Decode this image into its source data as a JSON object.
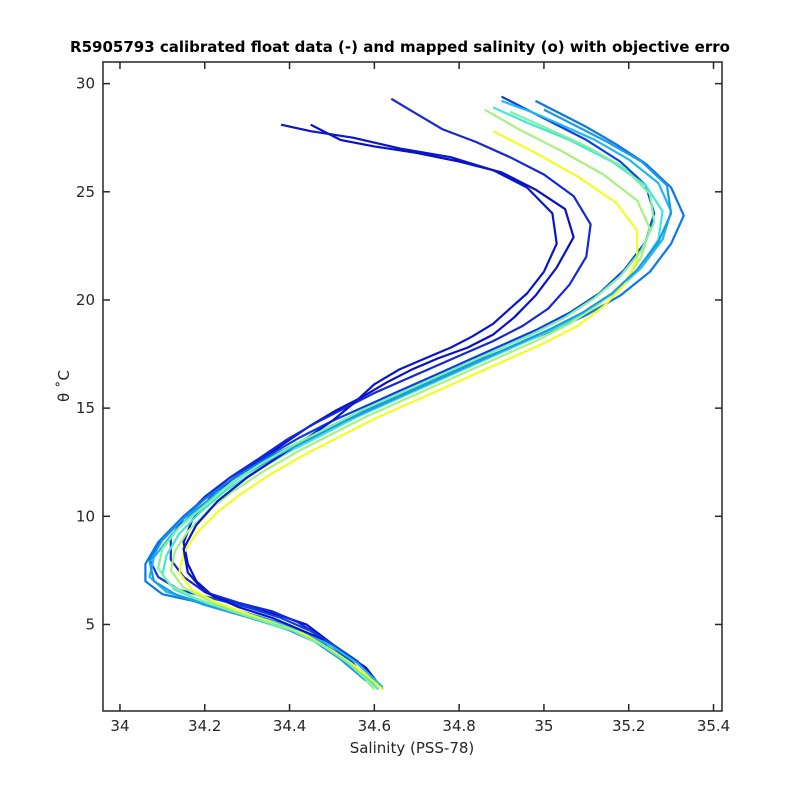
{
  "chart_data": {
    "type": "line",
    "title": "R5905793 calibrated float data (-) and mapped salinity (o) with objective erro",
    "xlabel": "Salinity (PSS-78)",
    "ylabel": "θ ˚C",
    "xlim": [
      33.96,
      35.42
    ],
    "ylim": [
      1.0,
      31.0
    ],
    "xticks": [
      34,
      34.2,
      34.4,
      34.6,
      34.8,
      35,
      35.2,
      35.4
    ],
    "xtick_labels": [
      "34",
      "34.2",
      "34.4",
      "34.6",
      "34.8",
      "35",
      "35.2",
      "35.4"
    ],
    "yticks": [
      5,
      10,
      15,
      20,
      25,
      30
    ],
    "ytick_labels": [
      "5",
      "10",
      "15",
      "20",
      "25",
      "30"
    ],
    "grid": false,
    "legend": "none",
    "colormap": [
      "#0000cc",
      "#0040e0",
      "#0a80e8",
      "#1fb8f0",
      "#40e8d8",
      "#a0f080",
      "#f0ff20"
    ],
    "series": [
      {
        "color": "#0a10c8",
        "x": [
          34.62,
          34.58,
          34.52,
          34.48,
          34.44,
          34.38,
          34.3,
          34.22,
          34.18,
          34.16,
          34.15,
          34.17,
          34.21,
          34.27,
          34.33,
          34.39,
          34.45,
          34.51,
          34.57,
          34.63,
          34.69,
          34.75,
          34.82,
          34.88,
          34.93,
          34.98,
          35.03,
          35.07,
          35.05,
          34.98,
          34.9,
          34.8,
          34.7,
          34.6,
          34.52,
          34.45
        ],
        "y": [
          2.0,
          3.0,
          3.8,
          4.4,
          5.0,
          5.4,
          5.8,
          6.3,
          7.0,
          7.8,
          8.8,
          9.8,
          10.8,
          11.8,
          12.6,
          13.4,
          14.2,
          14.9,
          15.5,
          16.2,
          16.8,
          17.3,
          17.8,
          18.4,
          19.2,
          20.2,
          21.5,
          22.9,
          24.2,
          25.1,
          25.9,
          26.4,
          26.8,
          27.1,
          27.4,
          28.1
        ]
      },
      {
        "color": "#1428d8",
        "x": [
          34.6,
          34.55,
          34.5,
          34.46,
          34.42,
          34.36,
          34.28,
          34.2,
          34.15,
          34.12,
          34.12,
          34.15,
          34.2,
          34.26,
          34.33,
          34.39,
          34.46,
          34.53,
          34.6,
          34.67,
          34.74,
          34.81,
          34.88,
          34.95,
          35.01,
          35.06,
          35.1,
          35.11,
          35.07,
          35.0,
          34.92,
          34.84,
          34.76,
          34.7,
          34.64
        ],
        "y": [
          2.1,
          3.2,
          4.0,
          4.6,
          5.1,
          5.6,
          6.0,
          6.5,
          7.2,
          8.0,
          9.0,
          9.9,
          10.9,
          11.8,
          12.7,
          13.5,
          14.3,
          15.0,
          15.7,
          16.3,
          16.9,
          17.5,
          18.1,
          18.8,
          19.6,
          20.7,
          22.0,
          23.5,
          24.8,
          25.8,
          26.6,
          27.3,
          27.9,
          28.6,
          29.3
        ]
      },
      {
        "color": "#0a40e4",
        "x": [
          34.61,
          34.56,
          34.5,
          34.45,
          34.38,
          34.3,
          34.22,
          34.14,
          34.09,
          34.07,
          34.1,
          34.15,
          34.21,
          34.28,
          34.35,
          34.42,
          34.5,
          34.58,
          34.66,
          34.74,
          34.82,
          34.9,
          34.98,
          35.06,
          35.13,
          35.19,
          35.24,
          35.26,
          35.24,
          35.18,
          35.1,
          35.02,
          34.96,
          34.9
        ],
        "y": [
          2.2,
          3.3,
          4.1,
          4.7,
          5.3,
          5.8,
          6.2,
          6.6,
          7.2,
          8.0,
          9.0,
          10.0,
          11.0,
          11.9,
          12.8,
          13.6,
          14.4,
          15.1,
          15.8,
          16.5,
          17.2,
          17.9,
          18.6,
          19.4,
          20.3,
          21.4,
          22.7,
          24.0,
          25.3,
          26.4,
          27.4,
          28.2,
          28.8,
          29.4
        ]
      },
      {
        "color": "#0a78ec",
        "x": [
          34.6,
          34.54,
          34.48,
          34.42,
          34.34,
          34.25,
          34.17,
          34.1,
          34.06,
          34.06,
          34.09,
          34.14,
          34.2,
          34.27,
          34.35,
          34.43,
          34.51,
          34.59,
          34.67,
          34.75,
          34.83,
          34.92,
          35.01,
          35.1,
          35.18,
          35.25,
          35.3,
          35.33,
          35.3,
          35.24,
          35.17,
          35.1,
          35.04,
          34.98
        ],
        "y": [
          2.2,
          3.3,
          4.1,
          4.8,
          5.3,
          5.8,
          6.1,
          6.4,
          7.0,
          7.8,
          8.8,
          9.8,
          10.8,
          11.8,
          12.7,
          13.5,
          14.3,
          15.0,
          15.7,
          16.4,
          17.1,
          17.8,
          18.5,
          19.3,
          20.2,
          21.3,
          22.6,
          23.9,
          25.2,
          26.3,
          27.2,
          28.0,
          28.6,
          29.2
        ]
      },
      {
        "color": "#20b8f0",
        "x": [
          34.62,
          34.56,
          34.5,
          34.43,
          34.35,
          34.26,
          34.18,
          34.11,
          34.07,
          34.08,
          34.12,
          34.17,
          34.23,
          34.3,
          34.38,
          34.46,
          34.54,
          34.62,
          34.7,
          34.78,
          34.86,
          34.94,
          35.02,
          35.1,
          35.17,
          35.23,
          35.28,
          35.3,
          35.27,
          35.2,
          35.12,
          35.04,
          34.97,
          34.9
        ],
        "y": [
          2.1,
          3.2,
          4.0,
          4.7,
          5.2,
          5.7,
          6.1,
          6.5,
          7.2,
          8.1,
          9.1,
          10.1,
          11.1,
          12.0,
          12.9,
          13.7,
          14.5,
          15.2,
          15.9,
          16.6,
          17.3,
          18.0,
          18.7,
          19.5,
          20.4,
          21.5,
          22.8,
          24.1,
          25.4,
          26.5,
          27.4,
          28.1,
          28.7,
          29.2
        ]
      },
      {
        "color": "#40e8d4",
        "x": [
          34.61,
          34.55,
          34.49,
          34.42,
          34.34,
          34.26,
          34.19,
          34.13,
          34.1,
          34.11,
          34.14,
          34.19,
          34.25,
          34.32,
          34.4,
          34.48,
          34.56,
          34.64,
          34.72,
          34.8,
          34.88,
          34.96,
          35.04,
          35.11,
          35.18,
          35.23,
          35.27,
          35.28,
          35.24,
          35.16,
          35.06,
          34.96,
          34.88
        ],
        "y": [
          2.0,
          3.1,
          3.9,
          4.6,
          5.1,
          5.6,
          6.1,
          6.6,
          7.3,
          8.2,
          9.2,
          10.2,
          11.2,
          12.1,
          13.0,
          13.8,
          14.6,
          15.3,
          16.0,
          16.7,
          17.4,
          18.1,
          18.8,
          19.6,
          20.5,
          21.6,
          22.8,
          24.1,
          25.3,
          26.4,
          27.4,
          28.2,
          28.9
        ]
      },
      {
        "color": "#a8f080",
        "x": [
          34.6,
          34.55,
          34.49,
          34.43,
          34.36,
          34.28,
          34.21,
          34.15,
          34.12,
          34.13,
          34.16,
          34.21,
          34.27,
          34.34,
          34.42,
          34.5,
          34.58,
          34.66,
          34.74,
          34.82,
          34.9,
          34.98,
          35.06,
          35.13,
          35.19,
          35.23,
          35.25,
          35.22,
          35.14,
          35.04,
          34.94,
          34.86
        ],
        "y": [
          2.0,
          3.1,
          3.9,
          4.6,
          5.1,
          5.6,
          6.1,
          6.7,
          7.5,
          8.4,
          9.3,
          10.3,
          11.2,
          12.1,
          13.0,
          13.8,
          14.6,
          15.3,
          16.0,
          16.7,
          17.4,
          18.1,
          18.9,
          19.8,
          20.8,
          22.0,
          23.3,
          24.6,
          25.8,
          26.9,
          27.9,
          28.8
        ]
      },
      {
        "color": "#f0ff20",
        "x": [
          34.62,
          34.56,
          34.5,
          34.44,
          34.37,
          34.3,
          34.23,
          34.17,
          34.14,
          34.15,
          34.18,
          34.23,
          34.29,
          34.36,
          34.44,
          34.52,
          34.6,
          34.68,
          34.76,
          34.84,
          34.92,
          35.0,
          35.08,
          35.14,
          35.19,
          35.22,
          35.22,
          35.17,
          35.08,
          34.98,
          34.88
        ],
        "y": [
          2.0,
          3.0,
          3.8,
          4.5,
          5.0,
          5.5,
          6.0,
          6.6,
          7.4,
          8.3,
          9.2,
          10.2,
          11.1,
          12.0,
          12.9,
          13.7,
          14.5,
          15.2,
          15.9,
          16.6,
          17.3,
          18.0,
          18.8,
          19.7,
          20.7,
          21.9,
          23.2,
          24.5,
          25.7,
          26.8,
          27.8
        ]
      },
      {
        "color": "#0818c8",
        "x": [
          34.48,
          34.42,
          34.36,
          34.28,
          34.2,
          34.16,
          34.15,
          34.18,
          34.23,
          34.3,
          34.37,
          34.44,
          34.5,
          34.55,
          34.6,
          34.66,
          34.72,
          34.78,
          34.83,
          34.88,
          34.92,
          34.96,
          35.0,
          35.03,
          35.02,
          34.96,
          34.88,
          34.78,
          34.66,
          34.55,
          34.45,
          34.38
        ],
        "y": [
          4.3,
          4.8,
          5.3,
          5.8,
          6.5,
          7.4,
          8.5,
          9.6,
          10.7,
          11.8,
          12.7,
          13.6,
          14.4,
          15.2,
          16.1,
          16.8,
          17.3,
          17.8,
          18.3,
          18.9,
          19.6,
          20.3,
          21.3,
          22.6,
          24.0,
          25.2,
          26.0,
          26.6,
          27.0,
          27.5,
          27.8,
          28.1
        ]
      },
      {
        "color": "#1a9ae8",
        "x": [
          34.58,
          34.52,
          34.46,
          34.38,
          34.29,
          34.2,
          34.13,
          34.08,
          34.07,
          34.1,
          34.15,
          34.22,
          34.29,
          34.37,
          34.45,
          34.53,
          34.61,
          34.69,
          34.77,
          34.85,
          34.93,
          35.01,
          35.09,
          35.16,
          35.22,
          35.27,
          35.3,
          35.29,
          35.23,
          35.15,
          35.07,
          35.0
        ],
        "y": [
          2.4,
          3.4,
          4.2,
          4.9,
          5.4,
          5.9,
          6.4,
          7.0,
          7.9,
          8.9,
          9.9,
          10.9,
          11.9,
          12.8,
          13.6,
          14.4,
          15.1,
          15.8,
          16.5,
          17.2,
          17.9,
          18.6,
          19.4,
          20.3,
          21.4,
          22.7,
          24.0,
          25.3,
          26.4,
          27.3,
          28.1,
          28.8
        ]
      },
      {
        "color": "#7ef0a0",
        "x": [
          34.6,
          34.54,
          34.48,
          34.41,
          34.33,
          34.25,
          34.18,
          34.12,
          34.09,
          34.1,
          34.14,
          34.2,
          34.26,
          34.33,
          34.41,
          34.49,
          34.57,
          34.65,
          34.73,
          34.81,
          34.89,
          34.97,
          35.05,
          35.12,
          35.18,
          35.23,
          35.26,
          35.25,
          35.19,
          35.1,
          35.0,
          34.92
        ],
        "y": [
          2.1,
          3.2,
          4.0,
          4.7,
          5.2,
          5.7,
          6.2,
          6.8,
          7.6,
          8.5,
          9.5,
          10.5,
          11.5,
          12.4,
          13.3,
          14.1,
          14.9,
          15.6,
          16.3,
          17.0,
          17.7,
          18.4,
          19.2,
          20.1,
          21.1,
          22.3,
          23.6,
          24.9,
          26.1,
          27.1,
          28.0,
          28.7
        ]
      }
    ]
  }
}
